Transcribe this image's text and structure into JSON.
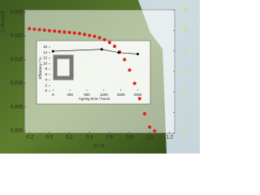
{
  "chart_data": [
    {
      "type": "scatter",
      "x_label": "V / V",
      "y_label": "J / A cm-2",
      "xlim": [
        -0.25,
        1.25
      ],
      "xticks": [
        {
          "value": -0.2,
          "label": "-0.2"
        },
        {
          "value": 0,
          "label": "0.0"
        },
        {
          "value": 0.2,
          "label": "0.2"
        },
        {
          "value": 0.4,
          "label": "0.4"
        },
        {
          "value": 0.6,
          "label": "0.6"
        },
        {
          "value": 0.8,
          "label": "0.8"
        },
        {
          "value": 1,
          "label": "1.0"
        },
        {
          "value": 1.2,
          "label": "1.2"
        }
      ],
      "ylim": [
        -0.0005,
        0.0255
      ],
      "yticks": [
        {
          "value": 0,
          "label": "0.000"
        },
        {
          "value": 0.005,
          "label": "0.005"
        },
        {
          "value": 0.01,
          "label": "0.010"
        },
        {
          "value": 0.015,
          "label": "0.015"
        },
        {
          "value": 0.02,
          "label": "0.020"
        },
        {
          "value": 0.025,
          "label": "0.025"
        }
      ],
      "y2lim": [
        0,
        6
      ],
      "y2ticks": [
        0,
        1,
        2,
        3,
        4,
        5,
        6
      ],
      "series": [
        {
          "color": "#e0201c",
          "x": [
            -0.2,
            -0.15,
            -0.1,
            -0.05,
            0,
            0.05,
            0.1,
            0.15,
            0.2,
            0.25,
            0.3,
            0.35,
            0.4,
            0.45,
            0.5,
            0.55,
            0.6,
            0.65,
            0.7,
            0.75,
            0.8,
            0.85,
            0.9,
            0.95,
            1.0,
            1.05
          ],
          "values": [
            0.0215,
            0.0214,
            0.0213,
            0.0212,
            0.0211,
            0.021,
            0.0209,
            0.0208,
            0.0207,
            0.0206,
            0.0205,
            0.0203,
            0.0201,
            0.0199,
            0.0196,
            0.0192,
            0.0186,
            0.0178,
            0.0166,
            0.015,
            0.0128,
            0.01,
            0.0068,
            0.0036,
            0.0008,
            0
          ]
        }
      ]
    },
    {
      "type": "line",
      "x_label": "Ageing time / hours",
      "y_label": "Efficiency / %",
      "xlim": [
        -100,
        2200
      ],
      "xticks": [
        0,
        400,
        800,
        1200,
        1600,
        2000
      ],
      "ylim": [
        0,
        16
      ],
      "yticks": [
        0,
        2,
        4,
        6,
        8,
        10,
        12,
        14,
        16
      ],
      "series": [
        {
          "color": "#000000",
          "x": [
            0,
            1150,
            1550,
            2000
          ],
          "values": [
            14.5,
            15.2,
            14,
            13.5
          ]
        }
      ]
    }
  ]
}
